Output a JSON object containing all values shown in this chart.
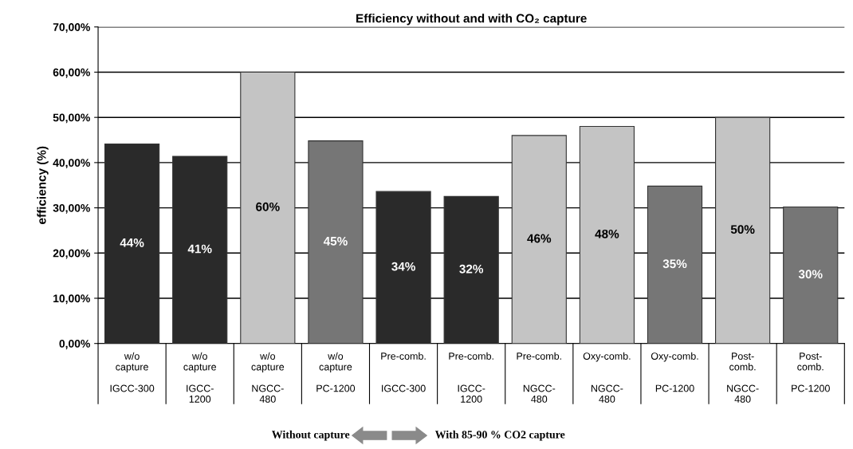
{
  "chart_data": {
    "type": "bar",
    "title": "Efficiency without and with CO₂ capture",
    "ylabel": "efficiency (%)",
    "categories": [
      "w/o\ncapture\n\nIGCC-300",
      "w/o\ncapture\n\nIGCC-\n1200",
      "w/o\ncapture\n\nNGCC-\n480",
      "w/o\ncapture\n\nPC-1200",
      "Pre-comb.\n\n\nIGCC-300",
      "Pre-comb.\n\n\nIGCC-\n1200",
      "Pre-comb.\n\n\nNGCC-\n480",
      "Oxy-comb.\n\n\nNGCC-\n480",
      "Oxy-comb.\n\n\nPC-1200",
      "Post-\ncomb.\n\nNGCC-\n480",
      "Post-\ncomb.\n\nPC-1200"
    ],
    "values": [
      44.1,
      41.4,
      60,
      44.8,
      33.6,
      32.5,
      46,
      48,
      34.8,
      50,
      30.2
    ],
    "value_labels": [
      "44%",
      "41%",
      "60%",
      "45%",
      "34%",
      "32%",
      "46%",
      "48%",
      "35%",
      "50%",
      "30%"
    ],
    "colors": [
      "#2a2a2a",
      "#2a2a2a",
      "#c4c4c4",
      "#767676",
      "#2a2a2a",
      "#2a2a2a",
      "#c4c4c4",
      "#c4c4c4",
      "#767676",
      "#c4c4c4",
      "#767676"
    ],
    "ylim": [
      0,
      70
    ],
    "yticks": [
      {
        "value": 0,
        "label": "0,00%"
      },
      {
        "value": 10,
        "label": "10,00%"
      },
      {
        "value": 20,
        "label": "20,00%"
      },
      {
        "value": 30,
        "label": "30,00%"
      },
      {
        "value": 40,
        "label": "40,00%"
      },
      {
        "value": 50,
        "label": "50,00%"
      },
      {
        "value": 60,
        "label": "60,00%"
      },
      {
        "value": 70,
        "label": "70,00%"
      }
    ],
    "grid": "y",
    "annotations": [
      "Without capture",
      "With 85-90 % CO2 capture"
    ]
  }
}
